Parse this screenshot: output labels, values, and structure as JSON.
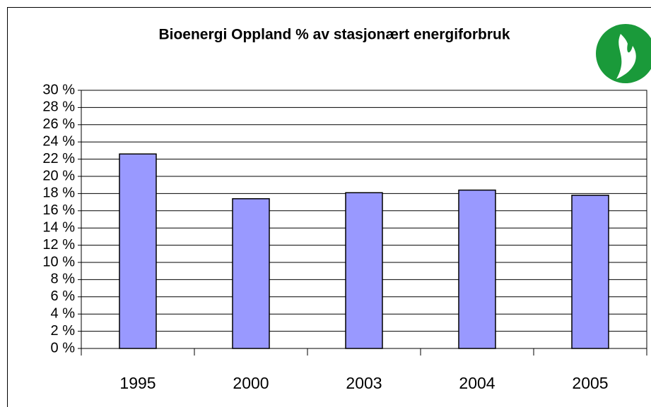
{
  "chart_data": {
    "type": "bar",
    "title": "Bioenergi Oppland  % av stasjonært energiforbruk",
    "categories": [
      "1995",
      "2000",
      "2003",
      "2004",
      "2005"
    ],
    "values": [
      22.6,
      17.4,
      18.1,
      18.4,
      17.8
    ],
    "color": "#9999ff",
    "ylim": [
      0,
      30
    ],
    "yticks": [
      {
        "value": 0,
        "label": "0 %"
      },
      {
        "value": 2,
        "label": "2 %"
      },
      {
        "value": 4,
        "label": "4 %"
      },
      {
        "value": 6,
        "label": "6 %"
      },
      {
        "value": 8,
        "label": "8 %"
      },
      {
        "value": 10,
        "label": "10 %"
      },
      {
        "value": 12,
        "label": "12 %"
      },
      {
        "value": 14,
        "label": "14 %"
      },
      {
        "value": 16,
        "label": "16 %"
      },
      {
        "value": 18,
        "label": "18 %"
      },
      {
        "value": 20,
        "label": "20 %"
      },
      {
        "value": 22,
        "label": "22 %"
      },
      {
        "value": 24,
        "label": "24 %"
      },
      {
        "value": 26,
        "label": "26 %"
      },
      {
        "value": 28,
        "label": "28 %"
      },
      {
        "value": 30,
        "label": "30 %"
      }
    ],
    "grid": true
  }
}
